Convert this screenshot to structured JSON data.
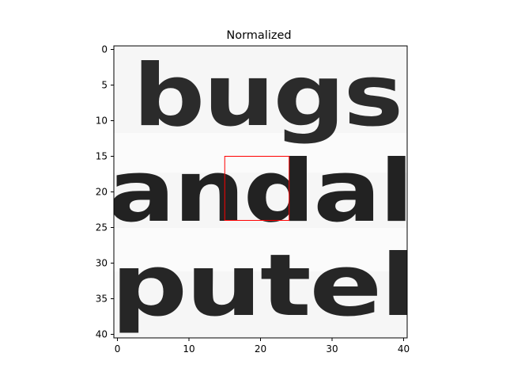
{
  "chart_data": {
    "type": "heatmap",
    "title": "Normalized",
    "xlabel": "",
    "ylabel": "",
    "xlim": [
      -0.5,
      40.5
    ],
    "ylim": [
      40.5,
      -0.5
    ],
    "x_ticks": [
      0,
      10,
      20,
      30,
      40
    ],
    "y_ticks": [
      0,
      5,
      10,
      15,
      20,
      25,
      30,
      35,
      40
    ],
    "colormap": "gray",
    "image_rows": 41,
    "image_cols": 41,
    "image_content_text": [
      "bugs",
      "andal",
      "putel"
    ],
    "annotations": [
      {
        "type": "rectangle",
        "x": [
          15,
          24
        ],
        "y": [
          15,
          24
        ],
        "color": "#ff0000"
      }
    ],
    "grid": false
  }
}
